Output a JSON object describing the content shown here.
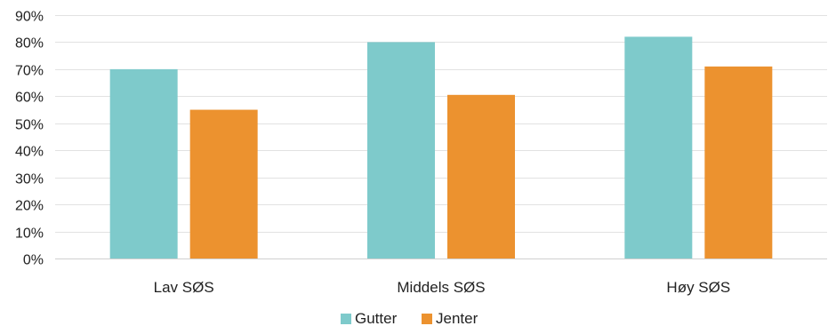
{
  "chart_data": {
    "type": "bar",
    "title": "",
    "xlabel": "",
    "ylabel": "",
    "categories": [
      "Lav SØS",
      "Middels SØS",
      "Høy SØS"
    ],
    "series": [
      {
        "name": "Gutter",
        "values": [
          70,
          80,
          82
        ],
        "color": "#7ecacb"
      },
      {
        "name": "Jenter",
        "values": [
          55,
          60.5,
          71
        ],
        "color": "#ec922f"
      }
    ],
    "ylim": [
      0,
      90
    ],
    "yticks": [
      0,
      10,
      20,
      30,
      40,
      50,
      60,
      70,
      80,
      90
    ],
    "ytick_labels": [
      "0%",
      "10%",
      "20%",
      "30%",
      "40%",
      "50%",
      "60%",
      "70%",
      "80%",
      "90%"
    ],
    "grid": true,
    "legend_position": "bottom"
  }
}
